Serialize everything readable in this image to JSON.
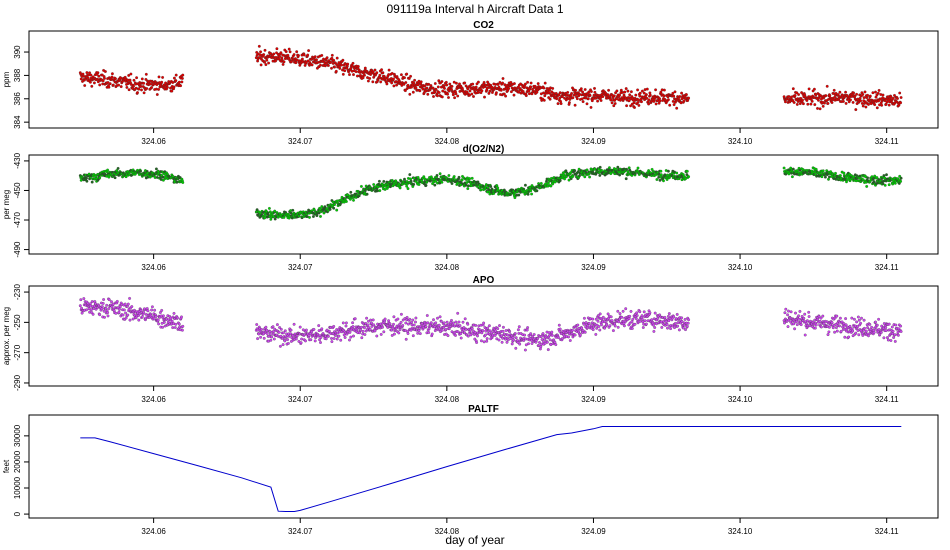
{
  "title": "091119a   Interval h Aircraft Data 1",
  "xlabel": "day of year",
  "colors": {
    "co2": "#dd0000",
    "o2n2": "#00cc00",
    "o2n2_dark": "#226622",
    "apo": "#cc44ee",
    "paltf": "#0000cc"
  },
  "chart_data": [
    {
      "type": "scatter",
      "title": "CO2",
      "ylabel": "ppm",
      "xlim": [
        324.0515,
        324.1135
      ],
      "ylim": [
        383.5,
        391.8
      ],
      "xticks": [
        "324.06",
        "324.07",
        "324.08",
        "324.09",
        "324.10",
        "324.11"
      ],
      "yticks": [
        "384",
        "386",
        "388",
        "390"
      ],
      "series": [
        {
          "name": "CO2",
          "points": [
            [
              324.055,
              387.8
            ],
            [
              324.057,
              387.6
            ],
            [
              324.059,
              387.2
            ],
            [
              324.061,
              387.2
            ],
            [
              324.062,
              387.5
            ],
            [
              324.067,
              389.6
            ],
            [
              324.0685,
              389.6
            ],
            [
              324.07,
              389.4
            ],
            [
              324.072,
              389.0
            ],
            [
              324.074,
              388.3
            ],
            [
              324.076,
              387.8
            ],
            [
              324.078,
              387.0
            ],
            [
              324.08,
              386.8
            ],
            [
              324.082,
              386.9
            ],
            [
              324.084,
              386.9
            ],
            [
              324.086,
              386.8
            ],
            [
              324.088,
              386.2
            ],
            [
              324.09,
              386.3
            ],
            [
              324.092,
              386.1
            ],
            [
              324.094,
              386.2
            ],
            [
              324.0965,
              386.0
            ],
            [
              324.103,
              385.9
            ],
            [
              324.105,
              386.0
            ],
            [
              324.107,
              386.1
            ],
            [
              324.109,
              386.0
            ],
            [
              324.111,
              385.8
            ]
          ]
        }
      ]
    },
    {
      "type": "scatter",
      "title": "d(O2/N2)",
      "ylabel": "per meg",
      "xlim": [
        324.0515,
        324.1135
      ],
      "ylim": [
        -493,
        -426
      ],
      "xticks": [
        "324.06",
        "324.07",
        "324.08",
        "324.09",
        "324.10",
        "324.11"
      ],
      "yticks": [
        "-490",
        "-470",
        "-450",
        "-430"
      ],
      "series": [
        {
          "name": "d(O2/N2)",
          "points": [
            [
              324.055,
              -442
            ],
            [
              324.057,
              -439
            ],
            [
              324.059,
              -438
            ],
            [
              324.0605,
              -439
            ],
            [
              324.062,
              -444
            ],
            [
              324.067,
              -465
            ],
            [
              324.0685,
              -467
            ],
            [
              324.07,
              -466
            ],
            [
              324.0715,
              -464
            ],
            [
              324.073,
              -456
            ],
            [
              324.0745,
              -450
            ],
            [
              324.076,
              -446
            ],
            [
              324.078,
              -444
            ],
            [
              324.08,
              -442
            ],
            [
              324.082,
              -446
            ],
            [
              324.084,
              -452
            ],
            [
              324.086,
              -449
            ],
            [
              324.088,
              -440
            ],
            [
              324.09,
              -437
            ],
            [
              324.092,
              -437
            ],
            [
              324.094,
              -439
            ],
            [
              324.0965,
              -440
            ],
            [
              324.103,
              -437
            ],
            [
              324.105,
              -438
            ],
            [
              324.107,
              -441
            ],
            [
              324.109,
              -443
            ],
            [
              324.111,
              -443
            ]
          ]
        }
      ]
    },
    {
      "type": "scatter",
      "title": "APO",
      "ylabel": "approx. per meg",
      "xlim": [
        324.0515,
        324.1135
      ],
      "ylim": [
        -292,
        -226
      ],
      "xticks": [
        "324.06",
        "324.07",
        "324.08",
        "324.09",
        "324.10",
        "324.11"
      ],
      "yticks": [
        "-290",
        "-270",
        "-250",
        "-230"
      ],
      "series": [
        {
          "name": "APO",
          "points": [
            [
              324.055,
              -240
            ],
            [
              324.057,
              -240
            ],
            [
              324.059,
              -244
            ],
            [
              324.061,
              -248
            ],
            [
              324.062,
              -250
            ],
            [
              324.067,
              -257
            ],
            [
              324.0685,
              -258
            ],
            [
              324.07,
              -259
            ],
            [
              324.072,
              -257
            ],
            [
              324.074,
              -254
            ],
            [
              324.076,
              -252
            ],
            [
              324.078,
              -253
            ],
            [
              324.08,
              -253
            ],
            [
              324.082,
              -256
            ],
            [
              324.084,
              -258
            ],
            [
              324.086,
              -262
            ],
            [
              324.088,
              -258
            ],
            [
              324.09,
              -251
            ],
            [
              324.092,
              -248
            ],
            [
              324.094,
              -248
            ],
            [
              324.0965,
              -250
            ],
            [
              324.103,
              -247
            ],
            [
              324.105,
              -250
            ],
            [
              324.107,
              -252
            ],
            [
              324.109,
              -254
            ],
            [
              324.111,
              -256
            ]
          ]
        }
      ]
    },
    {
      "type": "line",
      "title": "PALTF",
      "ylabel": "feet",
      "xlim": [
        324.0515,
        324.1135
      ],
      "ylim": [
        -1500,
        38000
      ],
      "xticks": [
        "324.06",
        "324.07",
        "324.08",
        "324.09",
        "324.10",
        "324.11"
      ],
      "yticks": [
        "0",
        "10000",
        "20000",
        "30000"
      ],
      "series": [
        {
          "name": "PALTF",
          "points": [
            [
              324.055,
              29200
            ],
            [
              324.056,
              29200
            ],
            [
              324.057,
              27800
            ],
            [
              324.06,
              23200
            ],
            [
              324.063,
              18600
            ],
            [
              324.066,
              13900
            ],
            [
              324.068,
              10300
            ],
            [
              324.0685,
              1100
            ],
            [
              324.069,
              1000
            ],
            [
              324.0696,
              1000
            ],
            [
              324.07,
              1400
            ],
            [
              324.072,
              4700
            ],
            [
              324.076,
              11400
            ],
            [
              324.08,
              18200
            ],
            [
              324.084,
              24800
            ],
            [
              324.0875,
              30500
            ],
            [
              324.0885,
              31100
            ],
            [
              324.09,
              32700
            ],
            [
              324.0906,
              33600
            ],
            [
              324.095,
              33600
            ],
            [
              324.1,
              33600
            ],
            [
              324.106,
              33600
            ],
            [
              324.111,
              33600
            ]
          ]
        }
      ]
    }
  ]
}
